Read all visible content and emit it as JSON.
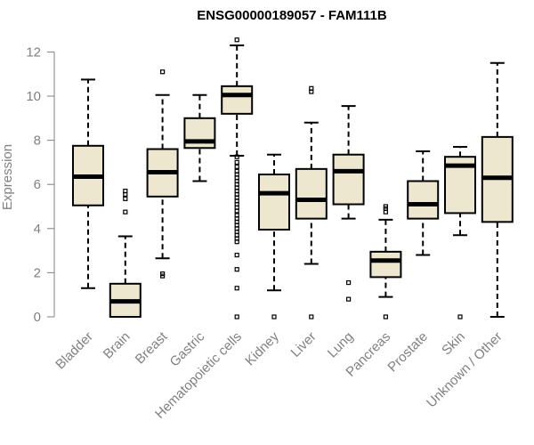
{
  "chart_data": {
    "type": "boxplot",
    "title": "ENSG00000189057 - FAM111B",
    "xlabel": "",
    "ylabel": "Expression",
    "ylim": [
      0,
      12
    ],
    "yticks": [
      0,
      2,
      4,
      6,
      8,
      10,
      12
    ],
    "categories": [
      "Bladder",
      "Brain",
      "Breast",
      "Gastric",
      "Hematopoietic cells",
      "Kidney",
      "Liver",
      "Lung",
      "Pancreas",
      "Prostate",
      "Skin",
      "Unknown / Other"
    ],
    "boxes": [
      {
        "name": "Bladder",
        "whisker_low": 1.3,
        "q1": 5.05,
        "median": 6.35,
        "q3": 7.75,
        "whisker_high": 10.75,
        "outliers": []
      },
      {
        "name": "Brain",
        "whisker_low": 0.0,
        "q1": 0.0,
        "median": 0.7,
        "q3": 1.5,
        "whisker_high": 3.65,
        "outliers": [
          4.75,
          5.35,
          5.55,
          5.7
        ]
      },
      {
        "name": "Breast",
        "whisker_low": 2.65,
        "q1": 5.45,
        "median": 6.55,
        "q3": 7.6,
        "whisker_high": 10.05,
        "outliers": [
          11.1,
          1.85,
          1.95
        ]
      },
      {
        "name": "Gastric",
        "whisker_low": 6.15,
        "q1": 7.65,
        "median": 7.95,
        "q3": 9.0,
        "whisker_high": 10.05,
        "outliers": []
      },
      {
        "name": "Hematopoietic cells",
        "whisker_low": 7.3,
        "q1": 9.2,
        "median": 10.05,
        "q3": 10.45,
        "whisker_high": 12.3,
        "outliers": [
          12.55,
          7.25,
          7.0,
          6.8,
          6.6,
          6.45,
          6.3,
          6.15,
          6.0,
          5.85,
          5.7,
          5.55,
          5.4,
          5.25,
          5.1,
          4.95,
          4.8,
          4.6,
          4.45,
          4.3,
          4.15,
          4.0,
          3.85,
          3.7,
          3.55,
          3.4,
          2.8,
          2.15,
          1.3,
          0.0
        ]
      },
      {
        "name": "Kidney",
        "whisker_low": 1.2,
        "q1": 3.95,
        "median": 5.6,
        "q3": 6.45,
        "whisker_high": 7.35,
        "outliers": [
          0.0
        ]
      },
      {
        "name": "Liver",
        "whisker_low": 2.4,
        "q1": 4.45,
        "median": 5.3,
        "q3": 6.7,
        "whisker_high": 8.8,
        "outliers": [
          10.2,
          10.35,
          0.0
        ]
      },
      {
        "name": "Lung",
        "whisker_low": 4.45,
        "q1": 5.1,
        "median": 6.6,
        "q3": 7.35,
        "whisker_high": 9.55,
        "outliers": [
          1.55,
          0.8
        ]
      },
      {
        "name": "Pancreas",
        "whisker_low": 0.9,
        "q1": 1.8,
        "median": 2.55,
        "q3": 2.95,
        "whisker_high": 4.4,
        "outliers": [
          4.75,
          4.9,
          5.0,
          0.0
        ]
      },
      {
        "name": "Prostate",
        "whisker_low": 2.8,
        "q1": 4.45,
        "median": 5.1,
        "q3": 6.15,
        "whisker_high": 7.5,
        "outliers": []
      },
      {
        "name": "Skin",
        "whisker_low": 3.7,
        "q1": 4.7,
        "median": 6.85,
        "q3": 7.25,
        "whisker_high": 7.7,
        "outliers": [
          0.0
        ]
      },
      {
        "name": "Unknown / Other",
        "whisker_low": 0.0,
        "q1": 4.3,
        "median": 6.3,
        "q3": 8.15,
        "whisker_high": 11.5,
        "outliers": []
      }
    ]
  },
  "colors": {
    "box_fill": "#ede7cf",
    "axis": "#808080",
    "stroke": "#000000"
  }
}
